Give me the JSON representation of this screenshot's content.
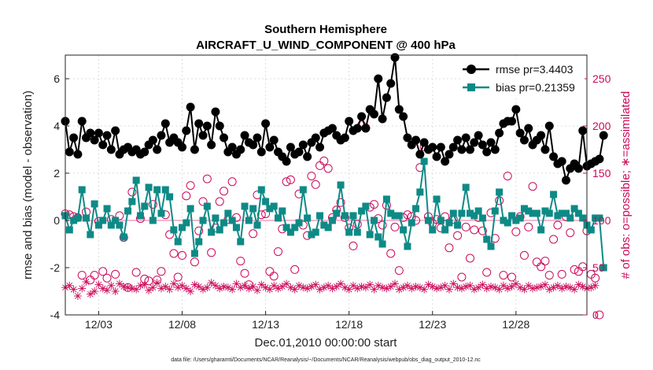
{
  "chart_data": {
    "type": "line",
    "title": "Southern Hemisphere",
    "subtitle": "AIRCRAFT_U_WIND_COMPONENT @ 400 hPa",
    "xlabel": "Dec.01,2010 00:00:00 start",
    "ylabel": "rmse and bias (model - observation)",
    "ylabel_right": "# of obs: o=possible; ∗=assimilated",
    "footnote": "data file: /Users/gharamti/Documents/NCAR/Reanalysis/~/Documents/NCAR/Reanalysis/webpub/obs_diag_output_2010-12.nc",
    "x_ticks": [
      {
        "day": 3,
        "label": "12/03"
      },
      {
        "day": 8,
        "label": "12/08"
      },
      {
        "day": 13,
        "label": "12/13"
      },
      {
        "day": 18,
        "label": "12/18"
      },
      {
        "day": 23,
        "label": "12/23"
      },
      {
        "day": 28,
        "label": "12/28"
      }
    ],
    "xlim": [
      1.0,
      32.25
    ],
    "ylim": [
      -4,
      7
    ],
    "y_ticks": [
      -4,
      -2,
      0,
      2,
      4,
      6
    ],
    "ylim_right": [
      0,
      275
    ],
    "y_ticks_right": [
      0,
      50,
      100,
      150,
      200,
      250
    ],
    "grid": true,
    "legend_position": "top-right",
    "colors": {
      "rmse": "#000000",
      "bias": "#0e8a86",
      "obs": "#cc0a5a",
      "zero_line": "#f0a0c0"
    },
    "series": [
      {
        "name": "rmse pr=3.4403",
        "key": "rmse",
        "axis": "left",
        "marker": "circle",
        "x0": 1.0,
        "dx": 0.25,
        "values": [
          4.2,
          2.9,
          3.5,
          2.8,
          4.2,
          3.5,
          3.7,
          3.4,
          3.7,
          3.2,
          3.6,
          3.0,
          3.8,
          2.8,
          3.0,
          3.1,
          2.9,
          3.0,
          2.8,
          2.9,
          3.2,
          3.4,
          3.0,
          3.6,
          4.1,
          3.3,
          3.5,
          3.3,
          3.1,
          3.8,
          4.8,
          3.0,
          4.1,
          3.6,
          4.0,
          3.2,
          4.6,
          4.0,
          3.5,
          2.9,
          3.1,
          2.8,
          3.0,
          3.6,
          3.3,
          3.2,
          3.5,
          2.9,
          4.1,
          3.1,
          3.4,
          2.9,
          2.7,
          2.5,
          3.1,
          2.8,
          2.9,
          3.2,
          2.7,
          3.3,
          3.5,
          3.1,
          3.7,
          3.8,
          3.9,
          3.6,
          3.4,
          3.5,
          4.2,
          3.8,
          3.9,
          4.4,
          3.9,
          4.7,
          4.5,
          6.0,
          4.3,
          5.2,
          5.8,
          6.9,
          4.7,
          4.4,
          3.5,
          3.2,
          3.4,
          2.8,
          3.3,
          3.0,
          3.1,
          2.7,
          3.1,
          2.5,
          2.8,
          3.1,
          3.4,
          3.0,
          3.5,
          3.0,
          3.3,
          3.6,
          3.2,
          2.9,
          3.3,
          3.0,
          3.7,
          4.1,
          4.2,
          4.2,
          4.7,
          3.7,
          3.4,
          3.9,
          3.2,
          3.4,
          3.6,
          3.0,
          4.0,
          2.7,
          2.4,
          2.5,
          1.7,
          2.2,
          2.4,
          2.2,
          3.8,
          2.3,
          2.4,
          2.5,
          2.6,
          3.6
        ]
      },
      {
        "name": "bias pr=0.21359",
        "key": "bias",
        "axis": "left",
        "marker": "square",
        "x0": 1.0,
        "dx": 0.25,
        "values": [
          0.2,
          -0.4,
          0.0,
          0.1,
          1.3,
          0.1,
          -0.6,
          0.7,
          -0.2,
          0.0,
          0.5,
          -0.2,
          0.0,
          -0.2,
          -0.7,
          0.4,
          0.8,
          1.7,
          0.2,
          0.6,
          1.4,
          0.0,
          1.3,
          0.3,
          1.3,
          1.0,
          -0.4,
          -0.9,
          -0.3,
          -0.1,
          0.5,
          -1.4,
          -0.9,
          0.0,
          0.6,
          -0.5,
          0.1,
          -0.4,
          -0.1,
          0.3,
          0.0,
          -0.3,
          -0.9,
          0.6,
          0.0,
          0.5,
          -0.2,
          1.3,
          0.8,
          0.5,
          0.6,
          0.1,
          0.4,
          -0.3,
          -0.5,
          -0.3,
          -0.1,
          1.3,
          0.1,
          -0.6,
          -0.5,
          0.2,
          -0.2,
          -0.3,
          0.0,
          0.3,
          1.5,
          0.2,
          -0.5,
          0.2,
          -0.5,
          0.4,
          0.6,
          -0.6,
          0.0,
          -0.7,
          -1.0,
          0.9,
          0.3,
          0.2,
          0.2,
          -0.4,
          -1.1,
          -0.1,
          0.5,
          1.2,
          2.5,
          0.0,
          -0.4,
          0.9,
          0.0,
          -0.4,
          -0.1,
          0.3,
          -0.2,
          0.3,
          1.4,
          0.3,
          0.2,
          0.4,
          0.1,
          -0.8,
          -1.1,
          0.4,
          1.2,
          0.0,
          -0.1,
          0.2,
          0.0,
          0.1,
          0.5,
          0.4,
          0.3,
          0.3,
          -0.4,
          0.4,
          0.3,
          1.1,
          0.2,
          0.3,
          0.3,
          0.1,
          0.5,
          0.3,
          0.1,
          -0.2,
          -0.4,
          0.1,
          0.1,
          -2.0
        ]
      },
      {
        "name": "possible",
        "key": "possible",
        "axis": "right",
        "marker": "circle-open",
        "x0": 1.0,
        "dx": 0.25,
        "values": [
          107,
          106,
          104,
          103,
          42,
          109,
          37,
          42,
          99,
          46,
          39,
          101,
          43,
          105,
          82,
          29,
          130,
          45,
          102,
          38,
          36,
          117,
          37,
          46,
          106,
          85,
          65,
          40,
          63,
          126,
          137,
          56,
          89,
          120,
          144,
          66,
          92,
          120,
          131,
          101,
          141,
          103,
          57,
          44,
          32,
          86,
          127,
          106,
          107,
          46,
          41,
          67,
          91,
          141,
          143,
          48,
          128,
          95,
          84,
          147,
          138,
          158,
          163,
          155,
          103,
          111,
          119,
          103,
          92,
          73,
          96,
          201,
          198,
          114,
          117,
          102,
          95,
          116,
          65,
          93,
          47,
          103,
          106,
          104,
          100,
          156,
          178,
          104,
          97,
          101,
          92,
          104,
          71,
          101,
          84,
          40,
          93,
          60,
          90,
          103,
          89,
          45,
          108,
          81,
          121,
          42,
          147,
          40,
          88,
          104,
          63,
          93,
          136,
          56,
          51,
          57,
          42,
          80,
          95,
          43,
          104,
          87,
          48,
          46,
          51,
          89,
          43,
          39,
          0
        ]
      },
      {
        "name": "assimilated",
        "key": "assimilated",
        "axis": "right",
        "marker": "asterisk",
        "x0": 1.0,
        "dx": 0.25,
        "values": [
          29,
          31,
          27,
          20,
          28,
          35,
          22,
          25,
          32,
          28,
          26,
          31,
          25,
          33,
          30,
          29,
          28,
          27,
          31,
          32,
          26,
          29,
          34,
          28,
          30,
          27,
          33,
          29,
          31,
          28,
          25,
          32,
          30,
          27,
          29,
          34,
          31,
          28,
          30,
          29,
          27,
          33,
          29,
          31,
          28,
          30,
          26,
          32,
          29,
          27,
          31,
          28,
          30,
          33,
          29,
          27,
          31,
          29,
          28,
          30,
          32,
          27,
          29,
          31,
          28,
          30,
          33,
          29,
          27,
          31,
          28,
          30,
          29,
          32,
          27,
          31,
          29,
          28,
          30,
          33,
          27,
          29,
          31,
          28,
          30,
          29,
          27,
          32,
          30,
          28,
          29,
          31,
          27,
          33,
          29,
          28,
          30,
          31,
          27,
          29,
          32,
          28,
          30,
          29,
          27,
          31,
          28,
          30,
          33,
          29,
          27,
          31,
          28,
          29,
          30,
          32,
          27,
          29,
          31,
          28,
          30,
          29,
          27,
          32,
          30,
          28,
          29,
          31
        ]
      }
    ]
  }
}
